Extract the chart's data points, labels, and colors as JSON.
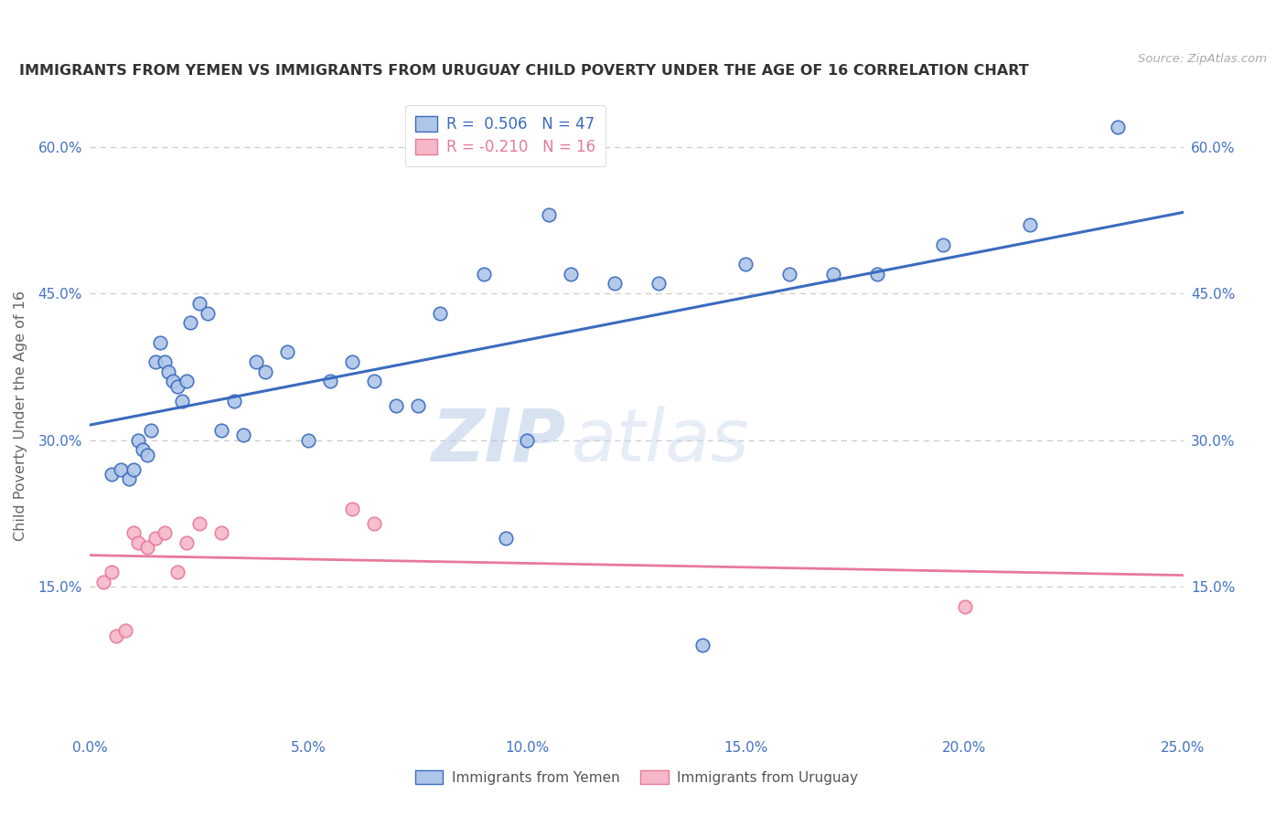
{
  "title": "IMMIGRANTS FROM YEMEN VS IMMIGRANTS FROM URUGUAY CHILD POVERTY UNDER THE AGE OF 16 CORRELATION CHART",
  "source": "Source: ZipAtlas.com",
  "ylabel": "Child Poverty Under the Age of 16",
  "xlabel": "",
  "xlim": [
    0.0,
    0.25
  ],
  "ylim": [
    0.0,
    0.65
  ],
  "xticks": [
    0.0,
    0.05,
    0.1,
    0.15,
    0.2,
    0.25
  ],
  "yticks": [
    0.15,
    0.3,
    0.45,
    0.6
  ],
  "ytick_labels": [
    "15.0%",
    "30.0%",
    "45.0%",
    "60.0%"
  ],
  "xtick_labels": [
    "0.0%",
    "5.0%",
    "10.0%",
    "15.0%",
    "20.0%",
    "25.0%"
  ],
  "legend_r1": "R =  0.506   N = 47",
  "legend_r2": "R = -0.210   N = 16",
  "color_yemen": "#aec6e8",
  "color_uruguay": "#f5b8c8",
  "line_color_yemen": "#3a6bbf",
  "line_color_uruguay": "#e8799a",
  "background": "#ffffff",
  "watermark_zip": "ZIP",
  "watermark_atlas": "atlas",
  "yemen_x": [
    0.005,
    0.007,
    0.009,
    0.01,
    0.011,
    0.012,
    0.013,
    0.014,
    0.015,
    0.016,
    0.017,
    0.018,
    0.019,
    0.02,
    0.021,
    0.022,
    0.023,
    0.025,
    0.027,
    0.03,
    0.033,
    0.035,
    0.038,
    0.04,
    0.045,
    0.05,
    0.055,
    0.06,
    0.065,
    0.07,
    0.075,
    0.08,
    0.09,
    0.095,
    0.1,
    0.105,
    0.11,
    0.12,
    0.13,
    0.14,
    0.15,
    0.16,
    0.17,
    0.18,
    0.195,
    0.215,
    0.235
  ],
  "yemen_y": [
    0.265,
    0.27,
    0.26,
    0.27,
    0.3,
    0.29,
    0.285,
    0.31,
    0.38,
    0.4,
    0.38,
    0.37,
    0.36,
    0.355,
    0.34,
    0.36,
    0.42,
    0.44,
    0.43,
    0.31,
    0.34,
    0.305,
    0.38,
    0.37,
    0.39,
    0.3,
    0.36,
    0.38,
    0.36,
    0.335,
    0.335,
    0.43,
    0.47,
    0.2,
    0.3,
    0.53,
    0.47,
    0.46,
    0.46,
    0.09,
    0.48,
    0.47,
    0.47,
    0.47,
    0.5,
    0.52,
    0.62
  ],
  "uruguay_x": [
    0.003,
    0.005,
    0.006,
    0.008,
    0.01,
    0.011,
    0.013,
    0.015,
    0.017,
    0.02,
    0.022,
    0.025,
    0.03,
    0.06,
    0.065,
    0.2
  ],
  "uruguay_y": [
    0.155,
    0.165,
    0.1,
    0.105,
    0.205,
    0.195,
    0.19,
    0.2,
    0.205,
    0.165,
    0.195,
    0.215,
    0.205,
    0.23,
    0.215,
    0.13
  ]
}
